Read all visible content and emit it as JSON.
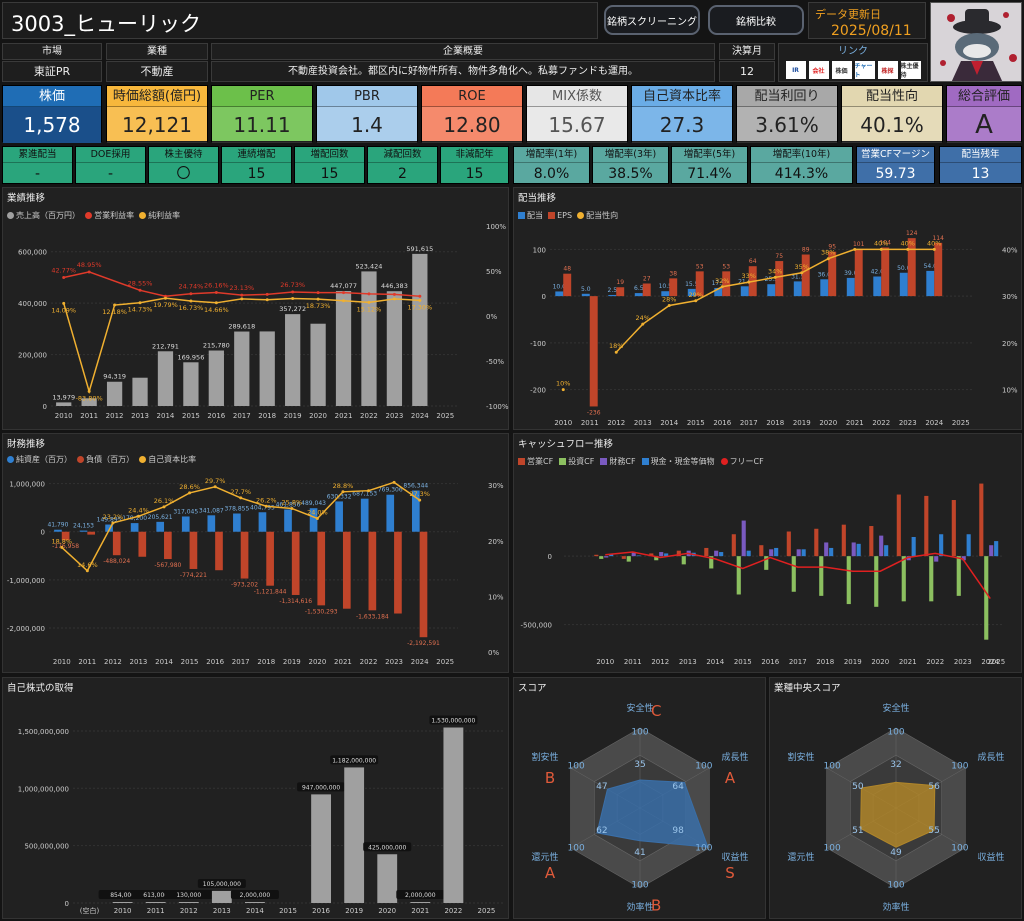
{
  "header": {
    "title": "3003_ヒューリック",
    "screening_btn": "銘柄スクリーニング",
    "compare_btn": "銘柄比較",
    "update_label": "データ更新日",
    "update_date": "2025/08/11"
  },
  "info": {
    "market_h": "市場",
    "market": "東証PR",
    "industry_h": "業種",
    "industry": "不動産",
    "overview_h": "企業概要",
    "overview": "不動産投資会社。都区内に好物件所有、物件多角化へ。私募ファンドも運用。",
    "fiscal_h": "決算月",
    "fiscal": "12",
    "link_h": "リンク",
    "links": [
      "IR",
      "会社",
      "株価",
      "チャート",
      "株探",
      "株主優待"
    ]
  },
  "kpis": [
    {
      "label": "株価",
      "value": "1,578",
      "bg": "#1f6db5",
      "lbg": "#1f6db5",
      "fg": "#fff"
    },
    {
      "label": "時価総額(億円)",
      "value": "12,121",
      "bg": "#f7b73c",
      "lbg": "#f7b73c",
      "fg": "#222"
    },
    {
      "label": "PER",
      "value": "11.11",
      "bg": "#6cc04a",
      "lbg": "#6cc04a",
      "fg": "#222"
    },
    {
      "label": "PBR",
      "value": "1.4",
      "bg": "#a0c8ea",
      "lbg": "#a0c8ea",
      "fg": "#222"
    },
    {
      "label": "ROE",
      "value": "12.80",
      "bg": "#f47a58",
      "lbg": "#f47a58",
      "fg": "#222"
    },
    {
      "label": "MIX係数",
      "value": "15.67",
      "bg": "#e6e6e6",
      "lbg": "#e6e6e6",
      "fg": "#555"
    },
    {
      "label": "自己資本比率",
      "value": "27.3",
      "bg": "#6aace6",
      "lbg": "#6aace6",
      "fg": "#222"
    },
    {
      "label": "配当利回り",
      "value": "3.61%",
      "bg": "#a8a8a8",
      "lbg": "#a8a8a8",
      "fg": "#222"
    },
    {
      "label": "配当性向",
      "value": "40.1%",
      "bg": "#e2d7b0",
      "lbg": "#e2d7b0",
      "fg": "#222"
    },
    {
      "label": "総合評価",
      "value": "A",
      "bg": "#a06ac2",
      "lbg": "#a06ac2",
      "fg": "#222"
    }
  ],
  "stats": [
    {
      "label": "累進配当",
      "value": "-",
      "bg": "#2aa57c"
    },
    {
      "label": "DOE採用",
      "value": "-",
      "bg": "#2aa57c"
    },
    {
      "label": "株主優待",
      "value": "〇",
      "bg": "#2aa57c"
    },
    {
      "label": "連続増配",
      "value": "15",
      "bg": "#2aa57c"
    },
    {
      "label": "増配回数",
      "value": "15",
      "bg": "#2aa57c"
    },
    {
      "label": "減配回数",
      "value": "2",
      "bg": "#2aa57c"
    },
    {
      "label": "非減配年",
      "value": "15",
      "bg": "#2aa57c"
    },
    {
      "label": "増配率(1年)",
      "value": "8.0%",
      "bg": "#5aa8a0"
    },
    {
      "label": "増配率(3年)",
      "value": "38.5%",
      "bg": "#5aa8a0"
    },
    {
      "label": "増配率(5年)",
      "value": "71.4%",
      "bg": "#5aa8a0"
    },
    {
      "label": "増配率(10年)",
      "value": "414.3%",
      "bg": "#5aa8a0"
    },
    {
      "label": "営業CFマージン",
      "value": "59.73",
      "bg": "#3f6fa8"
    },
    {
      "label": "配当残年",
      "value": "13",
      "bg": "#3f6fa8"
    }
  ],
  "panels": {
    "perf": "業績推移",
    "div": "配当推移",
    "fin": "財務推移",
    "cf": "キャッシュフロー推移",
    "buyback": "自己株式の取得",
    "score": "スコア",
    "ind_score": "業種中央スコア"
  },
  "chart_data": [
    {
      "id": "perf",
      "type": "bar",
      "title": "業績推移",
      "categories": [
        "2010",
        "2011",
        "2012",
        "2013",
        "2014",
        "2015",
        "2016",
        "2017",
        "2018",
        "2019",
        "2020",
        "2021",
        "2022",
        "2023",
        "2024",
        "2025"
      ],
      "series": [
        {
          "name": "売上高（百万円）",
          "type": "bar",
          "color": "#a0a0a0",
          "values": [
            13979,
            30000,
            94319,
            110000,
            212791,
            169956,
            215780,
            289618,
            290000,
            357272,
            320000,
            447077,
            523424,
            446383,
            591615,
            null
          ],
          "labels": [
            "13,979",
            "",
            "94,319",
            "",
            "212,791",
            "169,956",
            "215,780",
            "289,618",
            "",
            "357,272",
            "",
            "447,077",
            "523,424",
            "446,383",
            "591,615",
            ""
          ]
        },
        {
          "name": "営業利益率",
          "type": "line",
          "color": "#e03a2a",
          "values": [
            42.77,
            48.95,
            null,
            28.55,
            22.0,
            24.74,
            26.16,
            23.13,
            24.0,
            26.73,
            26.0,
            26.0,
            24.6,
            24.0,
            22.0,
            null
          ],
          "labels": [
            "42.77%",
            "48.95%",
            "",
            "28.55%",
            "",
            "24.74%",
            "26.16%",
            "23.13%",
            "",
            "26.73%",
            "",
            "",
            "",
            "",
            "",
            ""
          ]
        },
        {
          "name": "純利益率",
          "type": "line",
          "color": "#f0b030",
          "values": [
            14.09,
            -83.8,
            12.18,
            14.73,
            19.79,
            16.73,
            14.66,
            19.0,
            18.0,
            19.5,
            18.73,
            17.0,
            15.12,
            19.0,
            17.3,
            null
          ],
          "labels": [
            "14.09%",
            "-83.80%",
            "12.18%",
            "14.73%",
            "19.79%",
            "16.73%",
            "14.66%",
            "",
            "",
            "",
            "18.73%",
            "",
            "15.12%",
            "",
            "17.30%",
            ""
          ]
        }
      ],
      "ylim": [
        0,
        700000
      ],
      "y2lim": [
        -100,
        100
      ],
      "yticks": [
        "600,000",
        "400,000",
        "200,000",
        "0"
      ],
      "y2ticks": [
        "100%",
        "50%",
        "0%",
        "-50%",
        "-100%"
      ]
    },
    {
      "id": "div",
      "type": "bar",
      "title": "配当推移",
      "categories": [
        "2010",
        "2011",
        "2012",
        "2013",
        "2014",
        "2015",
        "2016",
        "2017",
        "2018",
        "2019",
        "2020",
        "2021",
        "2022",
        "2023",
        "2024",
        "2025"
      ],
      "series": [
        {
          "name": "配当",
          "type": "bar",
          "color": "#2f7fd0",
          "values": [
            10.0,
            5.0,
            2.5,
            6.5,
            10.5,
            15.5,
            17.5,
            21.0,
            25.5,
            31.5,
            36.0,
            39.0,
            42.0,
            50.0,
            54.0,
            null
          ]
        },
        {
          "name": "EPS",
          "type": "bar",
          "color": "#c0452a",
          "values": [
            48,
            -236,
            19,
            27,
            38,
            53,
            53,
            64,
            75,
            89,
            95,
            101,
            104,
            124,
            114,
            null
          ]
        },
        {
          "name": "配当性向",
          "type": "line",
          "color": "#f0b030",
          "values": [
            10,
            null,
            18,
            24,
            28,
            29,
            32,
            33,
            34,
            35,
            38,
            40,
            40,
            40,
            40,
            null
          ],
          "labels": [
            "10%",
            "",
            "18%",
            "24%",
            "28%",
            "29%",
            "32%",
            "33%",
            "34%",
            "35%",
            "38%",
            "",
            "40%",
            "40%",
            "40%",
            ""
          ]
        }
      ],
      "yticks": [
        "100",
        "0",
        "-100",
        "-200"
      ],
      "y2ticks": [
        "40%",
        "30%",
        "20%",
        "10%"
      ]
    },
    {
      "id": "fin",
      "type": "bar",
      "title": "財務推移",
      "categories": [
        "2010",
        "2011",
        "2012",
        "2013",
        "2014",
        "2015",
        "2016",
        "2017",
        "2018",
        "2019",
        "2020",
        "2021",
        "2022",
        "2023",
        "2024",
        "2025"
      ],
      "series": [
        {
          "name": "純資産（百万）",
          "type": "bar",
          "color": "#2f7fd0",
          "values": [
            41790,
            24153,
            149895,
            179200,
            205621,
            317045,
            341087,
            378855,
            404795,
            461856,
            489043,
            630332,
            687153,
            769306,
            856344,
            null
          ],
          "labels": [
            "41,790",
            "24,153",
            "149,895",
            "179,200",
            "205,621",
            "317,045",
            "341,087",
            "378,855",
            "404,795",
            "461,856",
            "489,043",
            "630,332",
            "687,153",
            "769,306",
            "856,344",
            ""
          ]
        },
        {
          "name": "負債（百万）",
          "type": "bar",
          "color": "#c0452a",
          "values": [
            -176958,
            -60000,
            -488024,
            -520000,
            -567980,
            -774221,
            -800000,
            -973202,
            -1121844,
            -1314616,
            -1530293,
            -1600000,
            -1633184,
            -1700000,
            -2192591,
            null
          ],
          "labels": [
            "-176,958",
            "",
            "-488,024",
            "",
            "-567,980",
            "-774,221",
            "",
            "-973,202",
            "-1,121,844",
            "-1,314,616",
            "-1,530,293",
            "",
            "-1,633,184",
            "",
            "-2,192,591",
            ""
          ]
        },
        {
          "name": "自己資本比率",
          "type": "line",
          "color": "#f0b030",
          "values": [
            18.8,
            14.6,
            23.2,
            24.4,
            26.1,
            28.6,
            29.7,
            27.7,
            26.2,
            25.8,
            24.0,
            28.8,
            29.0,
            30.5,
            27.3,
            null
          ],
          "labels": [
            "18.8%",
            "14.6%",
            "23.2%",
            "24.4%",
            "26.1%",
            "28.6%",
            "29.7%",
            "27.7%",
            "26.2%",
            "25.8%",
            "24.0%",
            "28.8%",
            "",
            "",
            "27.3%",
            ""
          ]
        }
      ],
      "yticks": [
        "1,000,000",
        "0",
        "-1,000,000",
        "-2,000,000"
      ],
      "y2ticks": [
        "30%",
        "20%",
        "10%",
        "0%"
      ]
    },
    {
      "id": "cf",
      "type": "bar",
      "title": "キャッシュフロー推移",
      "categories": [
        "2010",
        "2011",
        "2012",
        "2013",
        "2014",
        "2015",
        "2016",
        "2017",
        "2018",
        "2019",
        "2020",
        "2021",
        "2022",
        "2023",
        "2024"
      ],
      "series": [
        {
          "name": "営業CF",
          "color": "#c0452a",
          "values": [
            10000,
            -20000,
            20000,
            40000,
            60000,
            160000,
            80000,
            180000,
            200000,
            230000,
            220000,
            450000,
            440000,
            410000,
            530000
          ]
        },
        {
          "name": "投資CF",
          "color": "#8cc060",
          "values": [
            -20000,
            -40000,
            -30000,
            -60000,
            -90000,
            -280000,
            -100000,
            -260000,
            -290000,
            -350000,
            -370000,
            -330000,
            -330000,
            -290000,
            -610000
          ]
        },
        {
          "name": "財務CF",
          "color": "#7a5ac0",
          "values": [
            -10000,
            30000,
            30000,
            40000,
            40000,
            260000,
            50000,
            50000,
            100000,
            100000,
            150000,
            -30000,
            -40000,
            -30000,
            80000
          ]
        },
        {
          "name": "現金・現金等価物",
          "color": "#2f7fd0",
          "values": [
            15000,
            5000,
            20000,
            25000,
            30000,
            40000,
            60000,
            50000,
            60000,
            90000,
            80000,
            140000,
            160000,
            160000,
            110000
          ]
        },
        {
          "name": "フリーCF",
          "color": "#e02020",
          "values": [
            10000,
            30000,
            -10000,
            20000,
            -20000,
            -90000,
            -10000,
            -80000,
            -80000,
            -110000,
            -110000,
            -10000,
            20000,
            -20000,
            -310000
          ]
        }
      ],
      "yticks": [
        "0",
        "-500,000"
      ]
    },
    {
      "id": "buyback",
      "type": "bar",
      "title": "自己株式の取得",
      "categories": [
        "(空白)",
        "2010",
        "2011",
        "2012",
        "2013",
        "2014",
        "2015",
        "2016",
        "2019",
        "2020",
        "2021",
        "2022",
        "2025"
      ],
      "series": [
        {
          "name": "自己株式の取得",
          "color": "#a0a0a0",
          "values": [
            null,
            854000,
            613000,
            130000,
            105000000,
            2000000,
            0,
            947000000,
            1182000000,
            425000000,
            2000000,
            1530000000,
            null
          ],
          "labels": [
            "",
            "854,000",
            "613,000",
            "130,000",
            "105,000,000",
            "2,000,000",
            "",
            "947,000,000",
            "1,182,000,000",
            "425,000,000",
            "2,000,000",
            "1,530,000,000",
            ""
          ]
        }
      ],
      "yticks": [
        "1,500,000,000",
        "1,000,000,000",
        "500,000,000",
        "0"
      ]
    },
    {
      "id": "score",
      "type": "radar",
      "title": "スコア",
      "axes": [
        "安全性",
        "成長性",
        "収益性",
        "効率性",
        "還元性",
        "割安性"
      ],
      "max": 100,
      "values": [
        35,
        64,
        98,
        41,
        62,
        47
      ],
      "grades": [
        "C",
        "A",
        "S",
        "B",
        "A",
        "B"
      ],
      "color": "#3a6fa8"
    },
    {
      "id": "ind_score",
      "type": "radar",
      "title": "業種中央スコア",
      "axes": [
        "安全性",
        "成長性",
        "収益性",
        "効率性",
        "還元性",
        "割安性"
      ],
      "max": 100,
      "values": [
        32,
        56,
        55,
        49,
        51,
        50
      ],
      "color": "#b0862a"
    }
  ]
}
